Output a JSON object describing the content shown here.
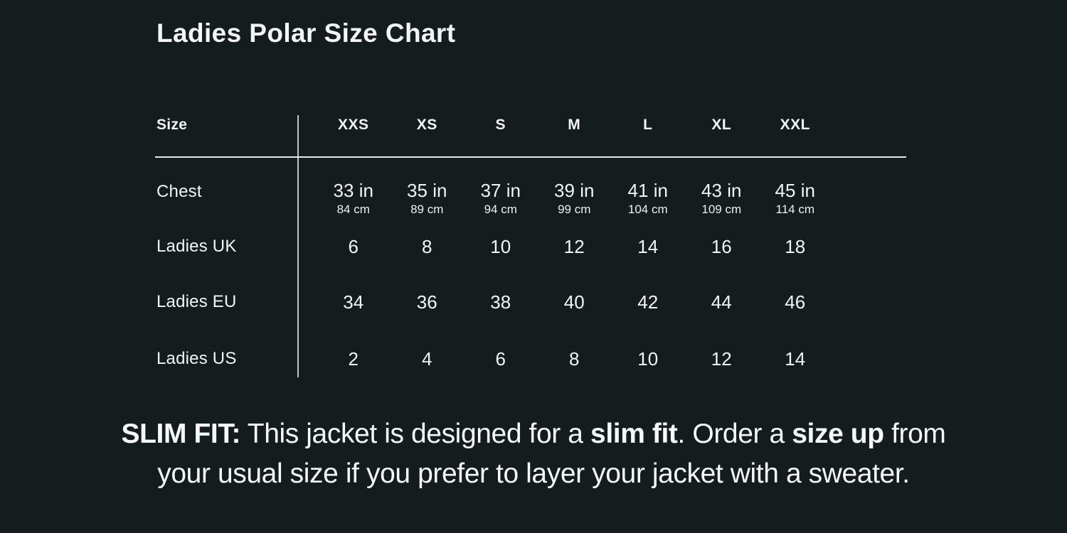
{
  "colors": {
    "background": "#141c1e",
    "text": "#f4f6f5",
    "divider_line": "#e6eae9"
  },
  "chart_data": {
    "type": "table",
    "title": "Ladies Polar Size Chart",
    "header": {
      "label": "Size",
      "sizes": [
        "XXS",
        "XS",
        "S",
        "M",
        "L",
        "XL",
        "XXL"
      ]
    },
    "rows": {
      "chest": {
        "label": "Chest",
        "inches": [
          "33 in",
          "35 in",
          "37 in",
          "39 in",
          "41 in",
          "43 in",
          "45 in"
        ],
        "centimeters": [
          "84 cm",
          "89 cm",
          "94 cm",
          "99 cm",
          "104 cm",
          "109 cm",
          "114 cm"
        ]
      },
      "ladies_uk": {
        "label": "Ladies UK",
        "values": [
          "6",
          "8",
          "10",
          "12",
          "14",
          "16",
          "18"
        ]
      },
      "ladies_eu": {
        "label": "Ladies EU",
        "values": [
          "34",
          "36",
          "38",
          "40",
          "42",
          "44",
          "46"
        ]
      },
      "ladies_us": {
        "label": "Ladies US",
        "values": [
          "2",
          "4",
          "6",
          "8",
          "10",
          "12",
          "14"
        ]
      }
    },
    "note": {
      "full_text": "SLIM FIT: This jacket is designed for a slim fit. Order a size up from your usual size if you prefer to layer your jacket with a sweater.",
      "bold1": "SLIM FIT:",
      "text1": " This jacket is designed for a ",
      "bold2": "slim fit",
      "text2": ". Order a ",
      "bold3": "size up",
      "text3": " from",
      "line2": "your usual size if you prefer to layer your jacket with a sweater."
    }
  }
}
